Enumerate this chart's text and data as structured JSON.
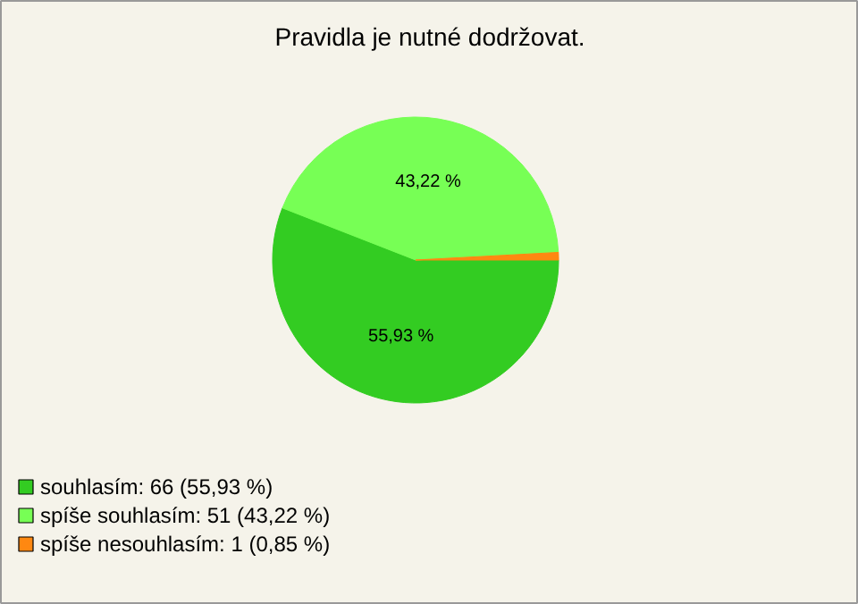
{
  "chart_data": {
    "type": "pie",
    "title": "Pravidla je nutné dodržovat.",
    "categories": [
      "souhlasím: 66 (55,93 %)",
      "spíše souhlasím: 51 (43,22 %)",
      "spíše nesouhlasím: 1 (0,85 %)"
    ],
    "values": [
      55.93,
      43.22,
      0.85
    ],
    "colors": [
      "#33cc22",
      "#77ff55",
      "#ff8811"
    ],
    "value_labels": [
      "55,93 %",
      "43,22 %",
      null
    ],
    "legend": "bottom left"
  }
}
